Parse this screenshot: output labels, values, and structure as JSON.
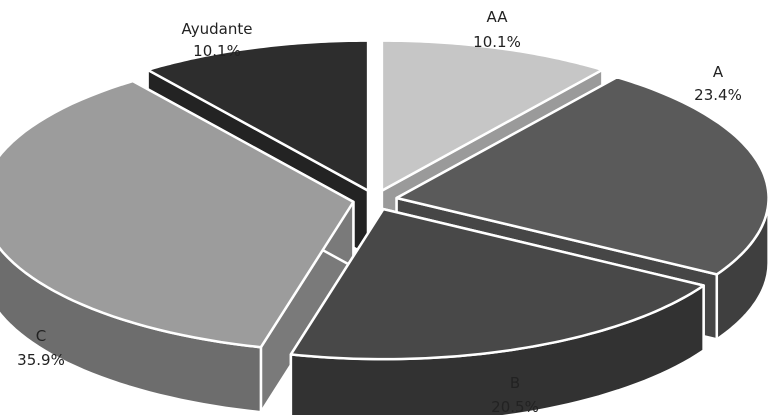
{
  "chart_data": {
    "type": "pie",
    "style": "3d-exploded",
    "title": "",
    "categories": [
      "AA",
      "A",
      "B",
      "C",
      "Ayudante"
    ],
    "values": [
      10.1,
      23.4,
      20.5,
      35.9,
      10.1
    ],
    "labels": [
      {
        "name": "AA",
        "value_text": "10.1%"
      },
      {
        "name": "A",
        "value_text": "23.4%"
      },
      {
        "name": "B",
        "value_text": "20.5%"
      },
      {
        "name": "C",
        "value_text": "35.9%"
      },
      {
        "name": "Ayudante",
        "value_text": "10.1%"
      }
    ],
    "colors": [
      "#c6c6c6",
      "#5a5a5a",
      "#484848",
      "#9c9c9c",
      "#2d2d2d"
    ],
    "legend": "none"
  }
}
